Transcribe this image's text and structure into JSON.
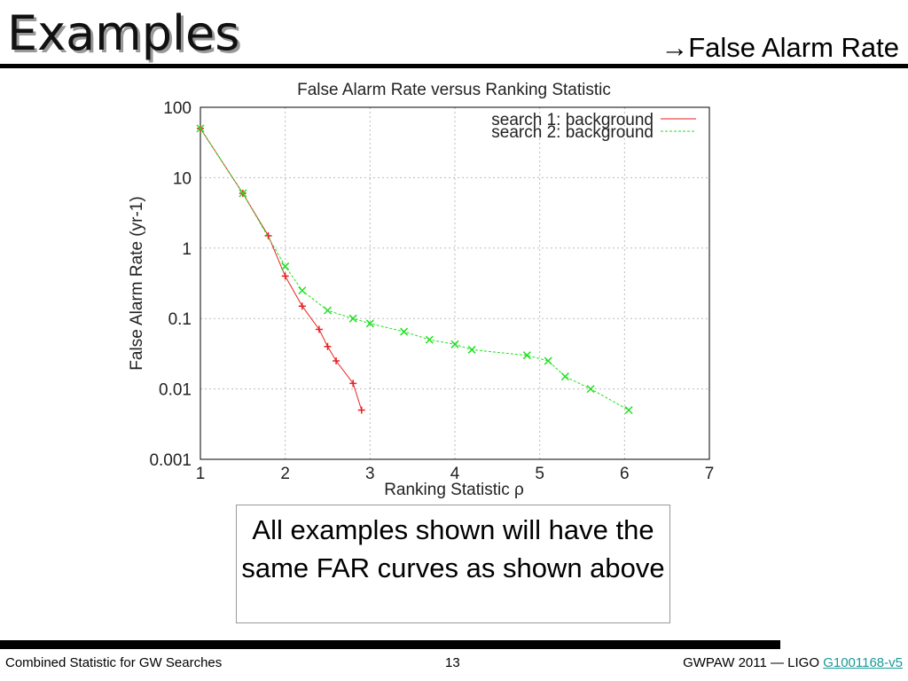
{
  "slide": {
    "title": "Examples",
    "subtitle": "→False Alarm Rate",
    "note": "All examples shown will have the same FAR curves as shown above",
    "footer_left": "Combined Statistic for GW Searches",
    "page": "13",
    "footer_right": "GWPAW 2011 — LIGO",
    "footer_link": "G1001168-v5"
  },
  "chart_data": {
    "type": "line",
    "title": "False Alarm Rate versus Ranking Statistic",
    "x_label": "Ranking Statistic ρ",
    "y_label": "False Alarm Rate (yr-1)",
    "xlim": [
      1,
      7
    ],
    "xticks": [
      1,
      2,
      3,
      4,
      5,
      6,
      7
    ],
    "ylim": [
      0.001,
      100
    ],
    "yticks": [
      100,
      10,
      1,
      0.1,
      0.01,
      0.001
    ],
    "y_log": true,
    "grid": true,
    "legend": "top-right",
    "series": [
      {
        "name": "search 1: background",
        "color": "#e82020",
        "x": [
          1,
          1.5,
          1.8,
          2,
          2.2,
          2.4,
          2.5,
          2.6,
          2.8,
          2.9
        ],
        "values": [
          50,
          6,
          1.5,
          0.4,
          0.15,
          0.07,
          0.04,
          0.025,
          0.012,
          0.005
        ]
      },
      {
        "name": "search 2: background",
        "color": "#20e020",
        "x": [
          1,
          1.5,
          2,
          2.2,
          2.5,
          2.8,
          3,
          3.4,
          3.7,
          4,
          4.2,
          4.85,
          5.1,
          5.3,
          5.6,
          6.05
        ],
        "values": [
          50,
          6,
          0.55,
          0.25,
          0.13,
          0.1,
          0.085,
          0.065,
          0.05,
          0.043,
          0.036,
          0.03,
          0.025,
          0.015,
          0.01,
          0.005
        ]
      }
    ]
  }
}
